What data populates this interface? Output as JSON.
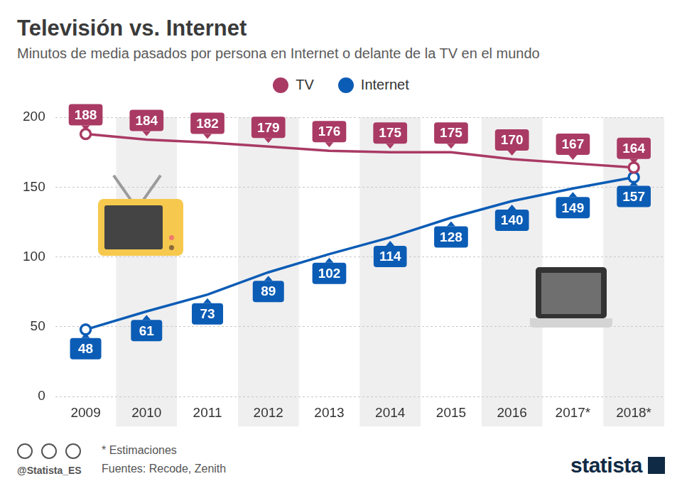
{
  "chart_data": {
    "type": "line",
    "title": "Televisión vs. Internet",
    "subtitle": "Minutos de media pasados por persona en Internet o delante de la TV en el mundo",
    "categories": [
      "2009",
      "2010",
      "2011",
      "2012",
      "2013",
      "2014",
      "2015",
      "2016",
      "2017*",
      "2018*"
    ],
    "series": [
      {
        "name": "TV",
        "color": "#a93a64",
        "values": [
          188,
          184,
          182,
          179,
          176,
          175,
          175,
          170,
          167,
          164
        ]
      },
      {
        "name": "Internet",
        "color": "#0b5cb5",
        "values": [
          48,
          61,
          73,
          89,
          102,
          114,
          128,
          140,
          149,
          157
        ]
      }
    ],
    "ylim": [
      0,
      200
    ],
    "yticks": [
      0,
      50,
      100,
      150,
      200
    ],
    "grid": true,
    "legend": "top",
    "data_labels": true,
    "note": "* Estimaciones",
    "source": "Fuentes: Recode, Zenith",
    "credit": "@Statista_ES",
    "logo": "statista"
  }
}
